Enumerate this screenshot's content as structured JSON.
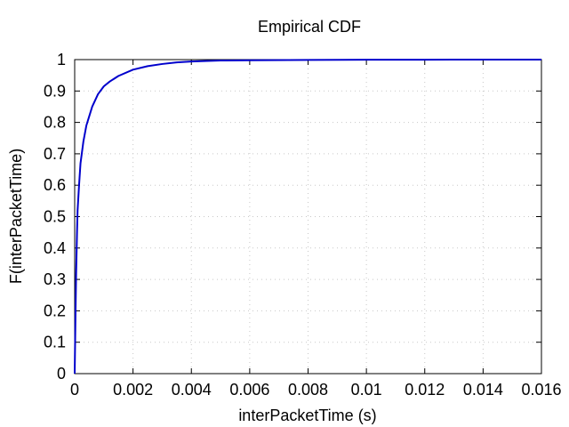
{
  "chart_data": {
    "type": "line",
    "title": "Empirical CDF",
    "xlabel": "interPacketTime (s)",
    "ylabel": "F(interPacketTime)",
    "xlim": [
      0,
      0.016
    ],
    "ylim": [
      0,
      1
    ],
    "grid": true,
    "x_ticks": [
      0,
      0.002,
      0.004,
      0.006,
      0.008,
      0.01,
      0.012,
      0.014,
      0.016
    ],
    "x_tick_labels": [
      "0",
      "0.002",
      "0.004",
      "0.006",
      "0.008",
      "0.01",
      "0.012",
      "0.014",
      "0.016"
    ],
    "y_ticks": [
      0,
      0.1,
      0.2,
      0.3,
      0.4,
      0.5,
      0.6,
      0.7,
      0.8,
      0.9,
      1
    ],
    "y_tick_labels": [
      "0",
      "0.1",
      "0.2",
      "0.3",
      "0.4",
      "0.5",
      "0.6",
      "0.7",
      "0.8",
      "0.9",
      "1"
    ],
    "series": [
      {
        "color": "#0000cc",
        "x": [
          0,
          3e-05,
          5e-05,
          8e-05,
          0.0001,
          0.00015,
          0.0002,
          0.0003,
          0.0004,
          0.0005,
          0.0006,
          0.0008,
          0.001,
          0.0012,
          0.0015,
          0.002,
          0.0025,
          0.003,
          0.0035,
          0.004,
          0.005,
          0.006,
          0.008,
          0.01,
          0.012,
          0.016
        ],
        "y": [
          0,
          0.2,
          0.32,
          0.45,
          0.52,
          0.6,
          0.67,
          0.74,
          0.79,
          0.82,
          0.85,
          0.89,
          0.915,
          0.93,
          0.948,
          0.968,
          0.979,
          0.986,
          0.991,
          0.994,
          0.997,
          0.998,
          0.999,
          0.9995,
          0.9998,
          1
        ]
      }
    ]
  }
}
